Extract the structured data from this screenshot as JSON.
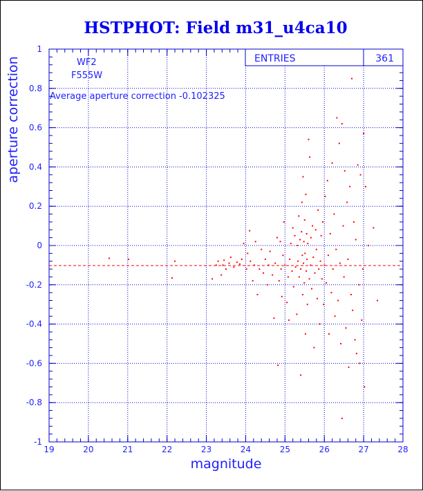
{
  "chart_data": {
    "type": "scatter",
    "title": "HSTPHOT: Field m31_u4ca10",
    "xlabel": "magnitude",
    "ylabel": "aperture correction",
    "xlim": [
      19,
      28
    ],
    "ylim": [
      -1,
      1
    ],
    "xticks": [
      "19",
      "20",
      "21",
      "22",
      "23",
      "24",
      "25",
      "26",
      "27",
      "28"
    ],
    "yticks": [
      "-1",
      "-0.8",
      "-0.6",
      "-0.4",
      "-0.2",
      "0",
      "0.2",
      "0.4",
      "0.6",
      "0.8",
      "1"
    ],
    "grid": true,
    "annotations": {
      "camera": "WF2",
      "filter": "F555W",
      "average_text": "Average aperture correction -0.102325"
    },
    "stats_box": {
      "label": "ENTRIES",
      "value": "361"
    },
    "reference_line": {
      "y": -0.102325,
      "style": "dashed",
      "color": "#ff0000"
    },
    "marker_color": "#ff0000",
    "points": [
      [
        20.53,
        -0.065
      ],
      [
        21.02,
        -0.07
      ],
      [
        22.13,
        -0.165
      ],
      [
        22.2,
        -0.08
      ],
      [
        23.15,
        -0.17
      ],
      [
        23.25,
        -0.1
      ],
      [
        23.3,
        -0.08
      ],
      [
        23.38,
        -0.15
      ],
      [
        23.42,
        -0.1
      ],
      [
        23.45,
        -0.075
      ],
      [
        23.5,
        -0.12
      ],
      [
        23.58,
        -0.09
      ],
      [
        23.62,
        -0.06
      ],
      [
        23.7,
        -0.11
      ],
      [
        23.78,
        -0.085
      ],
      [
        23.85,
        -0.095
      ],
      [
        23.9,
        -0.07
      ],
      [
        23.95,
        0.01
      ],
      [
        24.02,
        -0.12
      ],
      [
        24.05,
        -0.04
      ],
      [
        24.1,
        0.075
      ],
      [
        24.12,
        -0.08
      ],
      [
        24.18,
        -0.18
      ],
      [
        24.22,
        -0.1
      ],
      [
        24.25,
        0.02
      ],
      [
        24.3,
        -0.25
      ],
      [
        24.35,
        -0.12
      ],
      [
        24.4,
        -0.02
      ],
      [
        24.45,
        -0.14
      ],
      [
        24.5,
        -0.07
      ],
      [
        24.55,
        -0.2
      ],
      [
        24.58,
        -0.1
      ],
      [
        24.62,
        -0.03
      ],
      [
        24.68,
        -0.15
      ],
      [
        24.72,
        -0.37
      ],
      [
        24.75,
        -0.09
      ],
      [
        24.8,
        0.04
      ],
      [
        24.82,
        -0.61
      ],
      [
        24.85,
        -0.18
      ],
      [
        24.88,
        0.02
      ],
      [
        24.9,
        -0.12
      ],
      [
        24.92,
        -0.26
      ],
      [
        24.95,
        -0.05
      ],
      [
        24.97,
        0.12
      ],
      [
        25.0,
        -0.1
      ],
      [
        25.05,
        -0.29
      ],
      [
        25.08,
        -0.16
      ],
      [
        25.1,
        -0.38
      ],
      [
        25.12,
        -0.07
      ],
      [
        25.15,
        0.01
      ],
      [
        25.18,
        -0.13
      ],
      [
        25.2,
        0.09
      ],
      [
        25.22,
        -0.21
      ],
      [
        25.25,
        0.05
      ],
      [
        25.27,
        -0.11
      ],
      [
        25.3,
        -0.35
      ],
      [
        25.32,
        0.0
      ],
      [
        25.33,
        -0.08
      ],
      [
        25.35,
        0.15
      ],
      [
        25.36,
        -0.16
      ],
      [
        25.38,
        0.03
      ],
      [
        25.4,
        -0.66
      ],
      [
        25.4,
        -0.12
      ],
      [
        25.42,
        0.07
      ],
      [
        25.43,
        0.22
      ],
      [
        25.44,
        -0.05
      ],
      [
        25.45,
        -0.25
      ],
      [
        25.46,
        0.35
      ],
      [
        25.47,
        -0.09
      ],
      [
        25.48,
        0.02
      ],
      [
        25.49,
        -0.19
      ],
      [
        25.5,
        0.13
      ],
      [
        25.51,
        -0.04
      ],
      [
        25.52,
        -0.45
      ],
      [
        25.53,
        0.26
      ],
      [
        25.54,
        -0.13
      ],
      [
        25.55,
        0.06
      ],
      [
        25.56,
        -0.07
      ],
      [
        25.57,
        -0.3
      ],
      [
        25.58,
        0.01
      ],
      [
        25.6,
        0.54
      ],
      [
        25.62,
        -0.17
      ],
      [
        25.63,
        0.45
      ],
      [
        25.65,
        -0.1
      ],
      [
        25.66,
        0.04
      ],
      [
        25.68,
        -0.22
      ],
      [
        25.7,
        0.1
      ],
      [
        25.72,
        -0.06
      ],
      [
        25.74,
        -0.52
      ],
      [
        25.76,
        -0.14
      ],
      [
        25.78,
        0.08
      ],
      [
        25.8,
        -0.02
      ],
      [
        25.82,
        -0.27
      ],
      [
        25.84,
        0.18
      ],
      [
        25.86,
        -0.12
      ],
      [
        25.88,
        -0.4
      ],
      [
        25.9,
        -0.08
      ],
      [
        25.92,
        0.05
      ],
      [
        25.94,
        -0.17
      ],
      [
        25.96,
        0.12
      ],
      [
        25.98,
        -0.3
      ],
      [
        26.0,
        -0.1
      ],
      [
        26.02,
        0.25
      ],
      [
        26.05,
        -0.19
      ],
      [
        26.08,
        0.33
      ],
      [
        26.1,
        -0.05
      ],
      [
        26.12,
        -0.45
      ],
      [
        26.15,
        0.06
      ],
      [
        26.18,
        -0.24
      ],
      [
        26.2,
        0.42
      ],
      [
        26.22,
        -0.12
      ],
      [
        26.25,
        0.16
      ],
      [
        26.27,
        -0.36
      ],
      [
        26.3,
        -0.02
      ],
      [
        26.32,
        0.65
      ],
      [
        26.35,
        -0.28
      ],
      [
        26.38,
        0.52
      ],
      [
        26.4,
        -0.09
      ],
      [
        26.42,
        -0.5
      ],
      [
        26.45,
        0.62
      ],
      [
        26.45,
        -0.88
      ],
      [
        26.48,
        0.1
      ],
      [
        26.5,
        -0.16
      ],
      [
        26.52,
        0.38
      ],
      [
        26.55,
        -0.42
      ],
      [
        26.58,
        0.22
      ],
      [
        26.6,
        -0.07
      ],
      [
        26.62,
        -0.62
      ],
      [
        26.65,
        0.3
      ],
      [
        26.68,
        -0.25
      ],
      [
        26.7,
        0.85
      ],
      [
        26.72,
        -0.33
      ],
      [
        26.75,
        0.12
      ],
      [
        26.78,
        -0.48
      ],
      [
        26.8,
        0.03
      ],
      [
        26.82,
        -0.55
      ],
      [
        26.85,
        0.41
      ],
      [
        26.88,
        -0.2
      ],
      [
        26.9,
        -0.6
      ],
      [
        26.92,
        0.36
      ],
      [
        26.95,
        -0.38
      ],
      [
        26.98,
        -0.12
      ],
      [
        27.0,
        0.57
      ],
      [
        27.02,
        -0.72
      ],
      [
        27.05,
        0.3
      ],
      [
        27.12,
        0.0
      ],
      [
        27.25,
        0.09
      ],
      [
        27.35,
        -0.28
      ]
    ]
  }
}
